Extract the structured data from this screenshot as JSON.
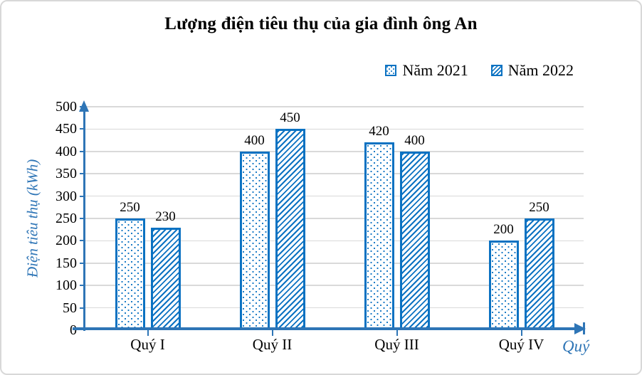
{
  "title": "Lượng điện tiêu thụ của gia đình ông An",
  "colors": {
    "accent_blue": "#0b72c2",
    "axis_blue": "#2e75b6",
    "gridline": "#d9d9d9",
    "blue_text": "#2e75b6",
    "text": "#000000"
  },
  "legend": {
    "items": [
      {
        "label": "Năm 2021",
        "pattern": "dots",
        "icon": "dotted-square-icon"
      },
      {
        "label": "Năm 2022",
        "pattern": "hatch",
        "icon": "hatched-square-icon"
      }
    ],
    "position": "top-right"
  },
  "chart_data": {
    "type": "bar",
    "title": "Lượng điện tiêu thụ của gia đình ông An",
    "categories": [
      "Quý I",
      "Quý II",
      "Quý III",
      "Quý IV"
    ],
    "series": [
      {
        "name": "Năm 2021",
        "pattern": "dots",
        "values": [
          250,
          400,
          420,
          200
        ]
      },
      {
        "name": "Năm 2022",
        "pattern": "hatch",
        "values": [
          230,
          450,
          400,
          250
        ]
      }
    ],
    "xlabel": "Quý",
    "ylabel": "Điện tiêu thụ (kWh)",
    "ylim": [
      0,
      500
    ],
    "ytick_step": 50,
    "yticks": [
      0,
      50,
      100,
      150,
      200,
      250,
      300,
      350,
      400,
      450,
      500
    ],
    "grid": true,
    "data_labels": true,
    "legend_position": "top-right",
    "axis_style": "blue-arrows"
  }
}
